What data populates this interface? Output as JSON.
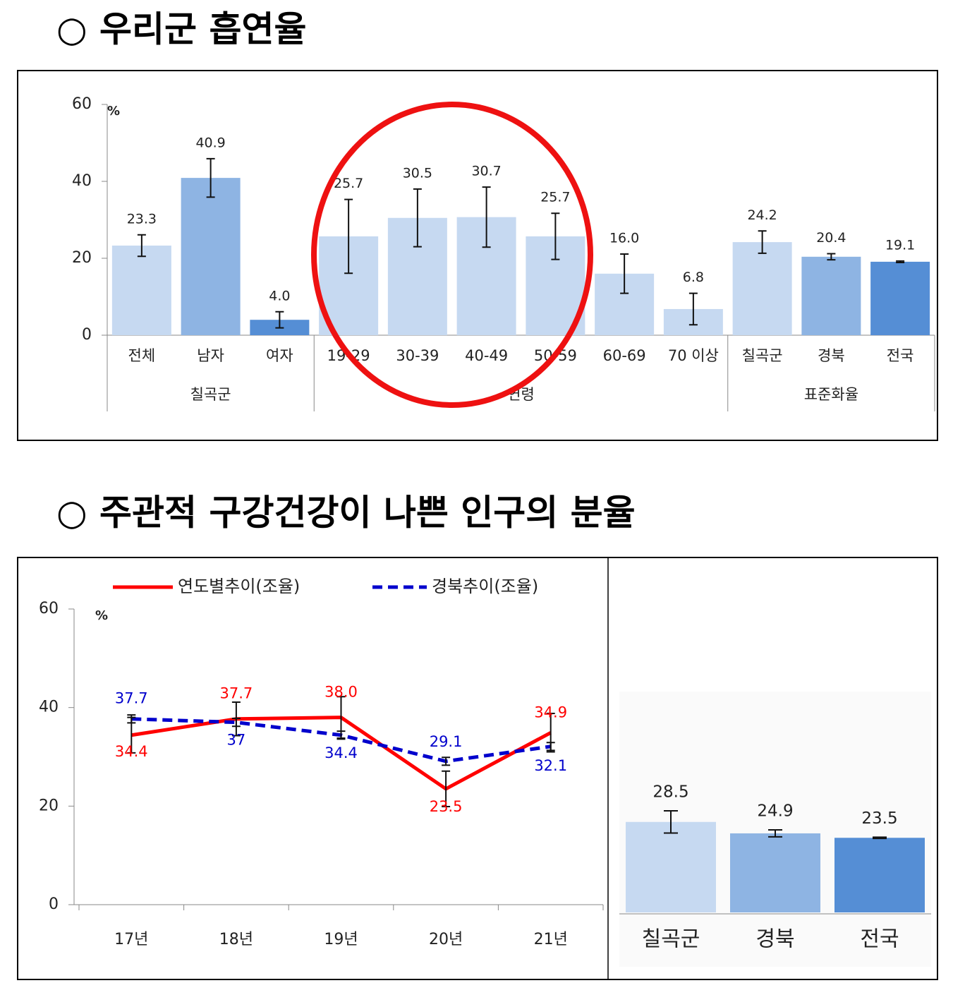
{
  "chart_data": [
    {
      "type": "bar",
      "title": "○ 우리군 흡연율",
      "unit": "%",
      "categories": [
        "전체",
        "남자",
        "여자",
        "19-29",
        "30-39",
        "40-49",
        "50-59",
        "60-69",
        "70 이상",
        "칠곡군",
        "경북",
        "전국"
      ],
      "groups": [
        {
          "label": "칠곡군",
          "span": 3
        },
        {
          "label": "연령",
          "span": 6
        },
        {
          "label": "표준화율",
          "span": 3
        }
      ],
      "values": [
        23.3,
        40.9,
        4.0,
        25.7,
        30.5,
        30.7,
        25.7,
        16.0,
        6.8,
        24.2,
        20.4,
        19.1
      ],
      "value_labels": [
        "23.3",
        "40.9",
        "4.0",
        "25.7",
        "30.5",
        "30.7",
        "25.7",
        "16.0",
        "6.8",
        "24.2",
        "20.4",
        "19.1"
      ],
      "errors": [
        2.8,
        5.0,
        2.1,
        9.6,
        7.5,
        7.8,
        6.0,
        5.1,
        4.1,
        2.9,
        0.8,
        0.2
      ],
      "colors": [
        "#c6d9f1",
        "#8eb4e3",
        "#558ed5",
        "#c6d9f1",
        "#c6d9f1",
        "#c6d9f1",
        "#c6d9f1",
        "#c6d9f1",
        "#c6d9f1",
        "#c6d9f1",
        "#8eb4e3",
        "#558ed5"
      ],
      "ylim": [
        0,
        60
      ],
      "yticks": [
        0,
        20,
        40,
        60
      ]
    },
    {
      "type": "line",
      "title": "○ 주관적 구강건강이 나쁜 인구의 분율",
      "unit": "%",
      "categories": [
        "17년",
        "18년",
        "19년",
        "20년",
        "21년"
      ],
      "series": [
        {
          "name": "연도별추이(조율)",
          "color": "#ff0000",
          "dash": false,
          "values": [
            34.4,
            37.7,
            38.0,
            23.5,
            34.9
          ],
          "value_labels": [
            "34.4",
            "37.7",
            "38.0",
            "23.5",
            "34.9"
          ],
          "errors": [
            3.6,
            3.4,
            4.2,
            3.6,
            3.9
          ]
        },
        {
          "name": "경북추이(조율)",
          "color": "#0000cc",
          "dash": true,
          "values": [
            37.7,
            37.0,
            34.4,
            29.1,
            32.1
          ],
          "errors": [
            0.8,
            0.8,
            0.8,
            0.8,
            0.8
          ]
        }
      ],
      "ylim": [
        0,
        60
      ],
      "yticks": [
        0,
        20,
        40,
        60
      ],
      "legend": "top"
    },
    {
      "type": "bar",
      "categories": [
        "칠곡군",
        "경북",
        "전국"
      ],
      "values": [
        28.5,
        24.9,
        23.5
      ],
      "errors": [
        3.5,
        1.1,
        0.2
      ],
      "colors": [
        "#c6d9f1",
        "#8eb4e3",
        "#558ed5"
      ]
    }
  ]
}
